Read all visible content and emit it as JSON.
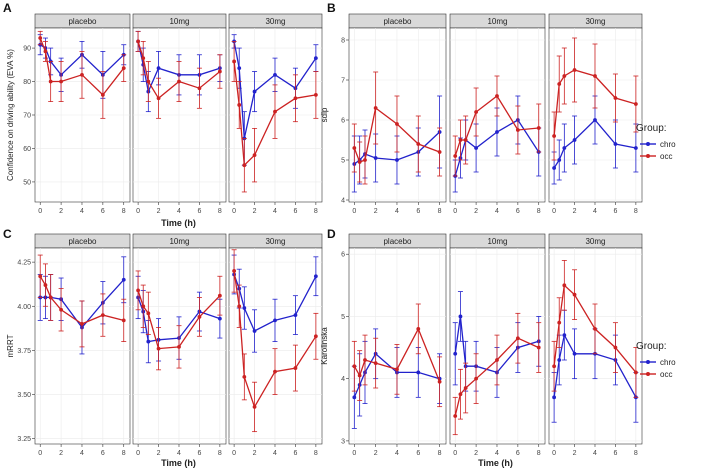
{
  "legend": {
    "title": "Group:",
    "entries": [
      {
        "key": "chro",
        "label": "chro",
        "color": "#2222cc"
      },
      {
        "key": "occ",
        "label": "occ",
        "color": "#cc2222"
      }
    ]
  },
  "chart_data": [
    {
      "panel_letter": "A",
      "type": "line",
      "ylabel": "Confidence on driving ability (EVA %)",
      "xlabel": "Time (h)",
      "ylim": [
        44,
        96
      ],
      "yticks": [
        50,
        60,
        70,
        80,
        90
      ],
      "xlim": [
        -0.5,
        8.6
      ],
      "xticks": [
        0,
        2,
        4,
        6,
        8
      ],
      "facets": [
        {
          "label": "placebo",
          "series": [
            {
              "group": "chro",
              "x": [
                0,
                0.5,
                1,
                2,
                4,
                6,
                8
              ],
              "y": [
                91,
                90,
                86,
                82,
                88,
                82,
                88
              ],
              "err": [
                3,
                3,
                4,
                5,
                4,
                7,
                3
              ]
            },
            {
              "group": "occ",
              "x": [
                0,
                0.5,
                1,
                2,
                4,
                6,
                8
              ],
              "y": [
                93,
                89,
                80,
                80,
                82,
                76,
                84
              ],
              "err": [
                2,
                3,
                6,
                6,
                7,
                7,
                4
              ]
            }
          ]
        },
        {
          "label": "10mg",
          "series": [
            {
              "group": "chro",
              "x": [
                0,
                0.5,
                1,
                2,
                4,
                6,
                8
              ],
              "y": [
                92,
                85,
                77,
                84,
                82,
                82,
                84
              ],
              "err": [
                3,
                5,
                6,
                5,
                6,
                6,
                4
              ]
            },
            {
              "group": "occ",
              "x": [
                0,
                0.5,
                1,
                2,
                4,
                6,
                8
              ],
              "y": [
                92,
                87,
                80,
                75,
                80,
                78,
                83
              ],
              "err": [
                3,
                5,
                6,
                6,
                6,
                6,
                5
              ]
            }
          ]
        },
        {
          "label": "30mg",
          "series": [
            {
              "group": "chro",
              "x": [
                0,
                0.5,
                1,
                2,
                4,
                6,
                8
              ],
              "y": [
                92,
                84,
                63,
                77,
                82,
                78,
                87
              ],
              "err": [
                2,
                6,
                8,
                6,
                5,
                6,
                4
              ]
            },
            {
              "group": "occ",
              "x": [
                0,
                0.5,
                1,
                2,
                4,
                6,
                8
              ],
              "y": [
                86,
                73,
                55,
                58,
                71,
                75,
                76
              ],
              "err": [
                6,
                7,
                8,
                8,
                8,
                7,
                7
              ]
            }
          ]
        }
      ]
    },
    {
      "panel_letter": "B",
      "type": "line",
      "ylabel": "sdlp",
      "xlabel": "",
      "ylim": [
        3.95,
        8.3
      ],
      "yticks": [
        4,
        5,
        6,
        7,
        8
      ],
      "xlim": [
        -0.5,
        8.6
      ],
      "xticks": [
        0,
        2,
        4,
        6,
        8
      ],
      "facets": [
        {
          "label": "placebo",
          "series": [
            {
              "group": "chro",
              "x": [
                0,
                0.5,
                1,
                2,
                4,
                6,
                8
              ],
              "y": [
                4.9,
                5.0,
                5.15,
                5.05,
                5.0,
                5.2,
                5.7
              ],
              "err": [
                0.7,
                0.6,
                0.6,
                0.6,
                0.6,
                0.6,
                0.9
              ]
            },
            {
              "group": "occ",
              "x": [
                0,
                0.5,
                1,
                2,
                4,
                6,
                8
              ],
              "y": [
                5.3,
                4.95,
                5.0,
                6.3,
                5.9,
                5.4,
                5.2
              ],
              "err": [
                0.6,
                0.5,
                0.6,
                0.9,
                0.7,
                0.7,
                0.6
              ]
            }
          ]
        },
        {
          "label": "10mg",
          "series": [
            {
              "group": "chro",
              "x": [
                0,
                0.5,
                1,
                2,
                4,
                6,
                8
              ],
              "y": [
                4.6,
                5.05,
                5.5,
                5.3,
                5.7,
                6.0,
                5.2
              ],
              "err": [
                0.4,
                0.5,
                0.5,
                0.6,
                0.6,
                0.6,
                0.6
              ]
            },
            {
              "group": "occ",
              "x": [
                0,
                0.5,
                1,
                2,
                4,
                6,
                8
              ],
              "y": [
                5.1,
                5.5,
                5.5,
                6.2,
                6.6,
                5.75,
                5.8
              ],
              "err": [
                0.5,
                0.5,
                0.6,
                0.6,
                0.5,
                0.6,
                0.6
              ]
            }
          ]
        },
        {
          "label": "30mg",
          "series": [
            {
              "group": "chro",
              "x": [
                0,
                0.5,
                1,
                2,
                4,
                6,
                8
              ],
              "y": [
                4.8,
                5.0,
                5.3,
                5.5,
                6.0,
                5.4,
                5.3
              ],
              "err": [
                0.4,
                0.5,
                0.6,
                0.6,
                0.6,
                0.6,
                0.6
              ]
            },
            {
              "group": "occ",
              "x": [
                0,
                0.5,
                1,
                2,
                4,
                6,
                8
              ],
              "y": [
                5.6,
                6.9,
                7.1,
                7.25,
                7.1,
                6.55,
                6.4
              ],
              "err": [
                0.6,
                0.7,
                0.7,
                0.8,
                0.8,
                0.6,
                0.7
              ]
            }
          ]
        }
      ]
    },
    {
      "panel_letter": "C",
      "type": "line",
      "ylabel": "mRRT",
      "xlabel": "Time (h)",
      "ylim": [
        3.22,
        4.33
      ],
      "yticks": [
        3.25,
        3.5,
        3.75,
        4.0,
        4.25
      ],
      "xlim": [
        -0.5,
        8.6
      ],
      "xticks": [
        0,
        2,
        4,
        6,
        8
      ],
      "facets": [
        {
          "label": "placebo",
          "series": [
            {
              "group": "chro",
              "x": [
                0,
                0.5,
                1,
                2,
                4,
                6,
                8
              ],
              "y": [
                4.05,
                4.05,
                4.05,
                4.04,
                3.88,
                4.02,
                4.15
              ],
              "err": [
                0.13,
                0.12,
                0.13,
                0.12,
                0.15,
                0.12,
                0.13
              ]
            },
            {
              "group": "occ",
              "x": [
                0,
                0.5,
                1,
                2,
                4,
                6,
                8
              ],
              "y": [
                4.17,
                4.12,
                4.05,
                3.98,
                3.9,
                3.95,
                3.92
              ],
              "err": [
                0.12,
                0.12,
                0.13,
                0.12,
                0.13,
                0.12,
                0.12
              ]
            }
          ]
        },
        {
          "label": "10mg",
          "series": [
            {
              "group": "chro",
              "x": [
                0,
                0.5,
                1,
                2,
                4,
                6,
                8
              ],
              "y": [
                4.05,
                3.97,
                3.8,
                3.81,
                3.82,
                3.97,
                3.93
              ],
              "err": [
                0.12,
                0.12,
                0.12,
                0.12,
                0.12,
                0.11,
                0.11
              ]
            },
            {
              "group": "occ",
              "x": [
                0,
                0.5,
                1,
                2,
                4,
                6,
                8
              ],
              "y": [
                4.09,
                4.0,
                3.96,
                3.76,
                3.77,
                3.94,
                4.06
              ],
              "err": [
                0.11,
                0.12,
                0.12,
                0.12,
                0.12,
                0.11,
                0.11
              ]
            }
          ]
        },
        {
          "label": "30mg",
          "series": [
            {
              "group": "chro",
              "x": [
                0,
                0.5,
                1,
                2,
                4,
                6,
                8
              ],
              "y": [
                4.18,
                4.1,
                3.99,
                3.86,
                3.92,
                3.95,
                4.17
              ],
              "err": [
                0.11,
                0.11,
                0.12,
                0.12,
                0.12,
                0.11,
                0.11
              ]
            },
            {
              "group": "occ",
              "x": [
                0,
                0.5,
                1,
                2,
                4,
                6,
                8
              ],
              "y": [
                4.2,
                4.0,
                3.6,
                3.43,
                3.63,
                3.65,
                3.83
              ],
              "err": [
                0.12,
                0.12,
                0.13,
                0.14,
                0.13,
                0.13,
                0.13
              ]
            }
          ]
        }
      ]
    },
    {
      "panel_letter": "D",
      "type": "line",
      "ylabel": "Karolinska",
      "xlabel": "Time (h)",
      "ylim": [
        2.95,
        6.1
      ],
      "yticks": [
        3,
        4,
        5,
        6
      ],
      "xlim": [
        -0.5,
        8.6
      ],
      "xticks": [
        0,
        2,
        4,
        6,
        8
      ],
      "facets": [
        {
          "label": "placebo",
          "series": [
            {
              "group": "chro",
              "x": [
                0,
                0.5,
                1,
                2,
                4,
                6,
                8
              ],
              "y": [
                3.7,
                3.9,
                4.1,
                4.4,
                4.1,
                4.1,
                4.0
              ],
              "err": [
                0.5,
                0.5,
                0.5,
                0.4,
                0.4,
                0.4,
                0.4
              ]
            },
            {
              "group": "occ",
              "x": [
                0,
                0.5,
                1,
                2,
                4,
                6,
                8
              ],
              "y": [
                4.2,
                4.05,
                4.3,
                4.25,
                4.15,
                4.8,
                3.95
              ],
              "err": [
                0.4,
                0.4,
                0.4,
                0.4,
                0.4,
                0.4,
                0.4
              ]
            }
          ]
        },
        {
          "label": "10mg",
          "series": [
            {
              "group": "chro",
              "x": [
                0,
                0.5,
                1,
                2,
                4,
                6,
                8
              ],
              "y": [
                4.4,
                5.0,
                4.2,
                4.2,
                4.1,
                4.5,
                4.6
              ],
              "err": [
                0.5,
                0.4,
                0.4,
                0.4,
                0.4,
                0.4,
                0.4
              ]
            },
            {
              "group": "occ",
              "x": [
                0,
                0.5,
                1,
                2,
                4,
                6,
                8
              ],
              "y": [
                3.4,
                3.75,
                3.85,
                4.0,
                4.3,
                4.65,
                4.5
              ],
              "err": [
                0.3,
                0.4,
                0.4,
                0.4,
                0.4,
                0.4,
                0.4
              ]
            }
          ]
        },
        {
          "label": "30mg",
          "series": [
            {
              "group": "chro",
              "x": [
                0,
                0.5,
                1,
                2,
                4,
                6,
                8
              ],
              "y": [
                3.7,
                4.3,
                4.7,
                4.4,
                4.4,
                4.3,
                3.7
              ],
              "err": [
                0.4,
                0.4,
                0.4,
                0.4,
                0.4,
                0.4,
                0.4
              ]
            },
            {
              "group": "occ",
              "x": [
                0,
                0.5,
                1,
                2,
                4,
                6,
                8
              ],
              "y": [
                4.2,
                4.9,
                5.5,
                5.35,
                4.8,
                4.5,
                4.1
              ],
              "err": [
                0.4,
                0.4,
                0.4,
                0.4,
                0.4,
                0.4,
                0.4
              ]
            }
          ]
        }
      ]
    }
  ]
}
